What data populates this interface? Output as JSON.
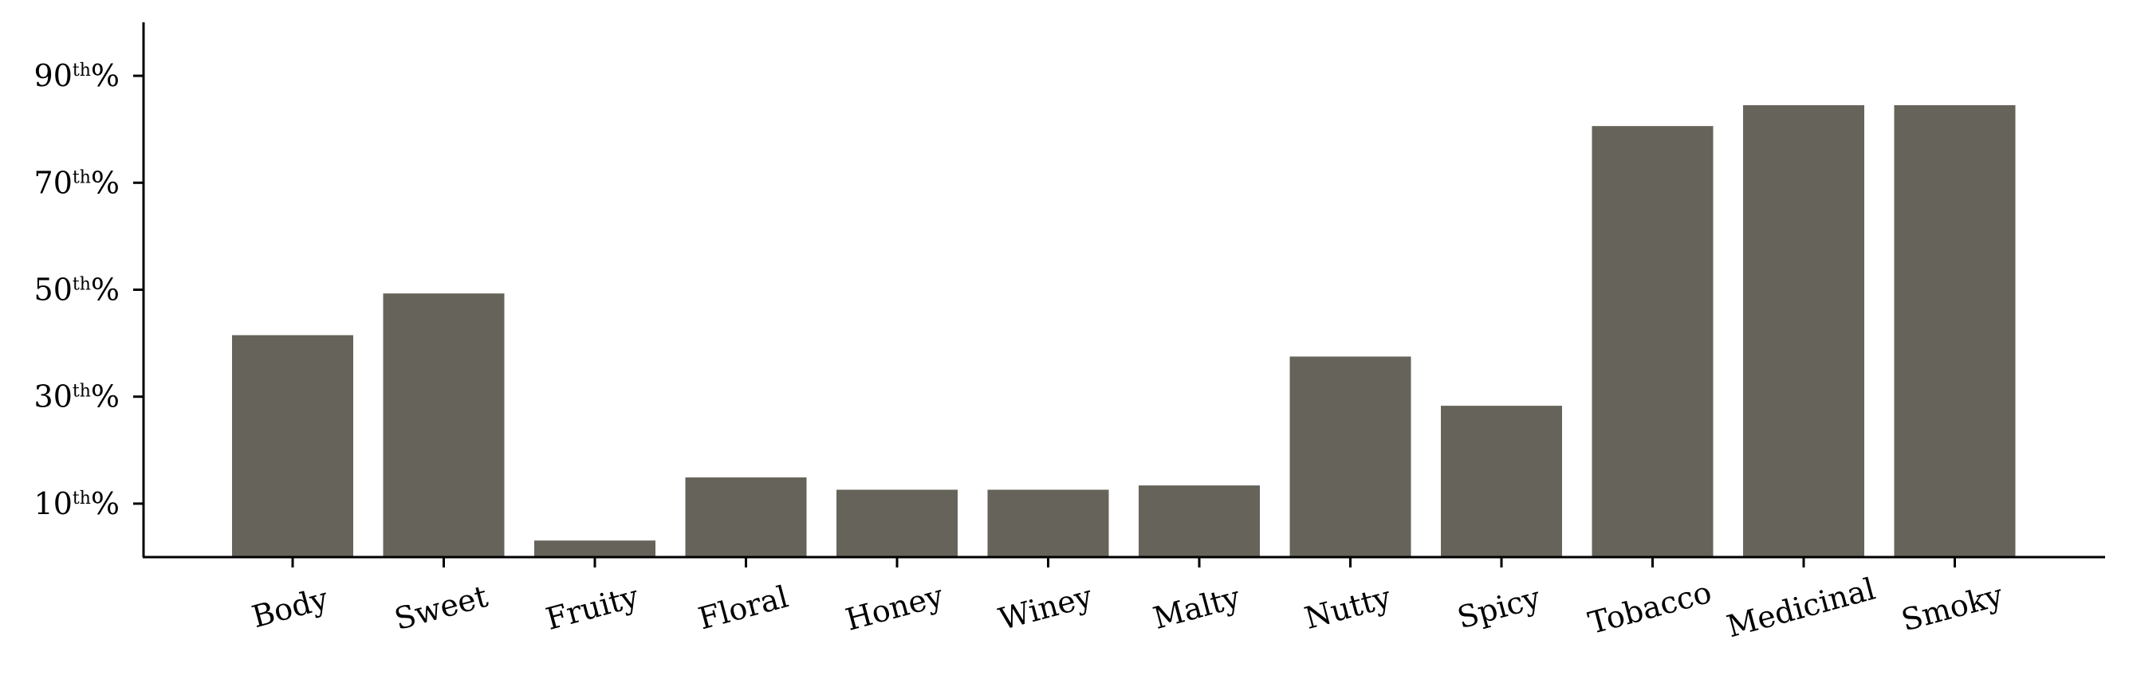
{
  "chart_data": {
    "type": "bar",
    "title": "",
    "xlabel": "",
    "ylabel": "",
    "categories": [
      "Body",
      "Sweet",
      "Fruity",
      "Floral",
      "Honey",
      "Winey",
      "Malty",
      "Nutty",
      "Spicy",
      "Tobacco",
      "Medicinal",
      "Smoky"
    ],
    "values": [
      41.5,
      49.3,
      3.1,
      14.9,
      12.6,
      12.6,
      13.4,
      37.5,
      28.3,
      80.6,
      84.5,
      84.5
    ],
    "ylim": [
      0,
      100
    ],
    "yticks": [
      {
        "value": 10,
        "number": "10",
        "suffix": "th",
        "unit": "%"
      },
      {
        "value": 30,
        "number": "30",
        "suffix": "th",
        "unit": "%"
      },
      {
        "value": 50,
        "number": "50",
        "suffix": "th",
        "unit": "%"
      },
      {
        "value": 70,
        "number": "70",
        "suffix": "th",
        "unit": "%"
      },
      {
        "value": 90,
        "number": "90",
        "suffix": "th",
        "unit": "%"
      }
    ],
    "bar_color": "#66645a",
    "grid": false,
    "legend": "none"
  }
}
